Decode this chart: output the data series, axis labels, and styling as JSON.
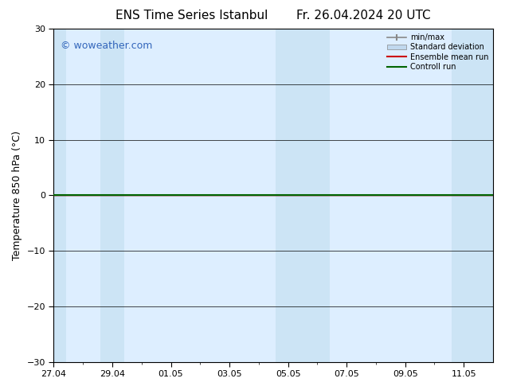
{
  "title_left": "ENS Time Series Istanbul",
  "title_right": "Fr. 26.04.2024 20 UTC",
  "ylabel": "Temperature 850 hPa (°C)",
  "ylim": [
    -30,
    30
  ],
  "yticks": [
    -30,
    -20,
    -10,
    0,
    10,
    20,
    30
  ],
  "xtick_labels": [
    "27.04",
    "29.04",
    "01.05",
    "03.05",
    "05.05",
    "07.05",
    "09.05",
    "11.05"
  ],
  "xtick_positions": [
    0,
    2,
    4,
    6,
    8,
    10,
    12,
    14
  ],
  "x_min": 0,
  "x_max": 15,
  "shaded_bands": [
    [
      0.0,
      0.42
    ],
    [
      1.58,
      2.42
    ],
    [
      7.58,
      9.42
    ],
    [
      13.58,
      15.0
    ]
  ],
  "plot_bg_color": "#ddeeff",
  "band_color": "#cce4f5",
  "zero_line_color": "#111111",
  "control_run_color": "#006400",
  "ensemble_mean_color": "#cc0000",
  "min_max_color": "#888888",
  "std_dev_color": "#c0d8ee",
  "bg_color": "#ffffff",
  "watermark": "© woweather.com",
  "watermark_color": "#3366bb",
  "legend_labels": [
    "min/max",
    "Standard deviation",
    "Ensemble mean run",
    "Controll run"
  ],
  "title_fontsize": 11,
  "axis_label_fontsize": 9,
  "tick_fontsize": 8,
  "watermark_fontsize": 9
}
